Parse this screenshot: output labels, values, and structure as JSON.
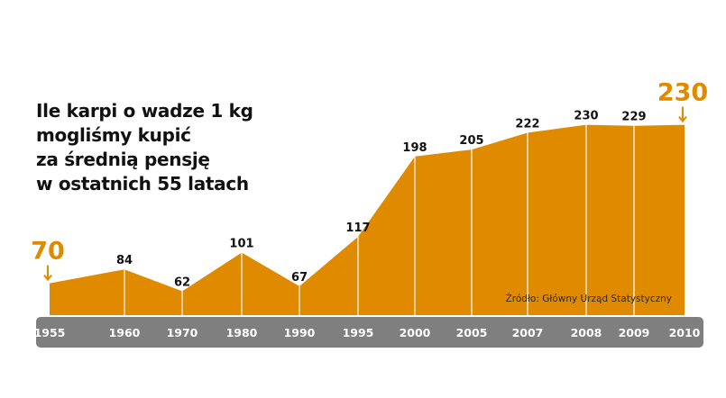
{
  "title_lines": [
    "Ile karpi o wadze 1 kg",
    "mogliśmy kupić",
    "za średnią pensję",
    "w ostatnich 55 latach"
  ],
  "source": "Źródło: Główny Urząd Statystyczny",
  "colors": {
    "area": "#e08a00",
    "axis_bar": "#7f7f7f",
    "highlight": "#e08a00",
    "gridline": "#ffffff"
  },
  "chart_data": {
    "type": "area",
    "title": "Ile karpi o wadze 1 kg mogliśmy kupić za średnią pensję w ostatnich 55 latach",
    "categories": [
      "1955",
      "1960",
      "1970",
      "1980",
      "1990",
      "1995",
      "2000",
      "2005",
      "2007",
      "2008",
      "2009",
      "2010"
    ],
    "values": [
      70,
      84,
      62,
      101,
      67,
      117,
      198,
      205,
      222,
      230,
      229,
      230
    ],
    "highlighted": [
      {
        "category": "1955",
        "value": 70
      },
      {
        "category": "2010",
        "value": 230
      }
    ],
    "xlabel": "",
    "ylabel": "",
    "ylim": [
      0,
      250
    ],
    "grid": true,
    "legend": "none"
  }
}
